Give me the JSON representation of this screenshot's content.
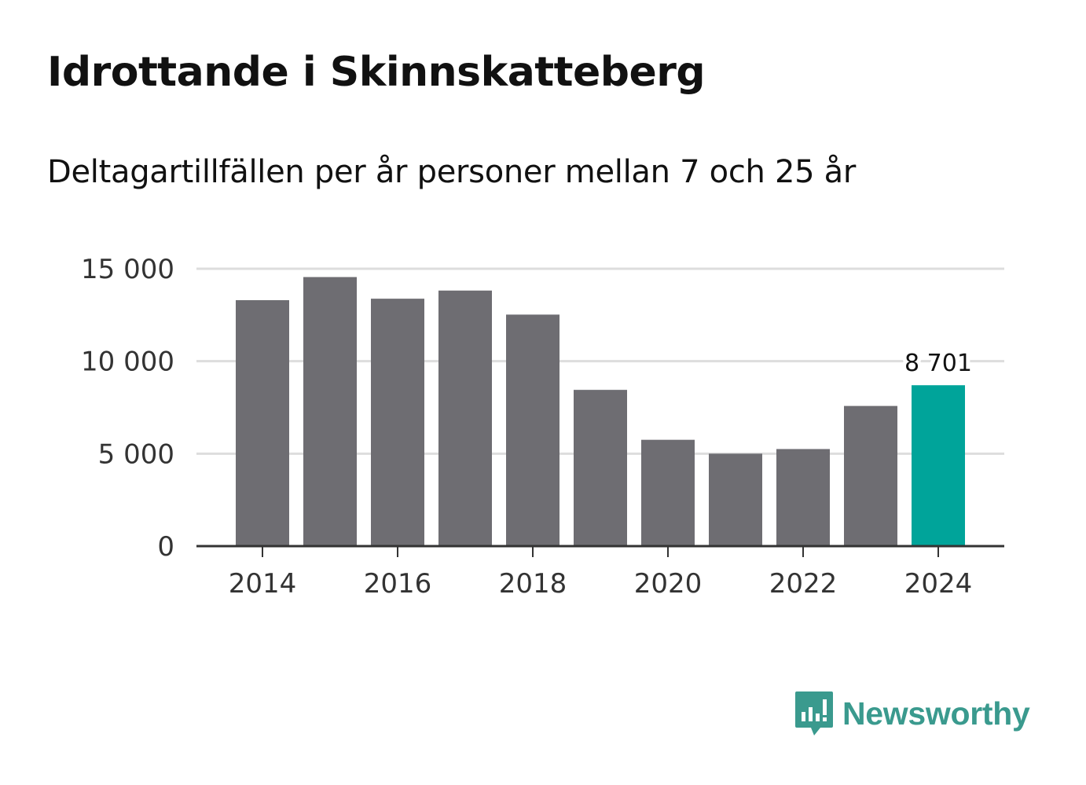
{
  "title": "Idrottande i Skinnskatteberg",
  "subtitle": "Deltagartillfällen per år personer mellan 7 och 25 år",
  "brand": {
    "name": "Newsworthy",
    "icon": "newsworthy-logo-icon",
    "color": "#3a9a8e"
  },
  "colors": {
    "bar": "#6e6d72",
    "highlight": "#00a49a",
    "grid": "#dddddd",
    "axis": "#333333"
  },
  "chart_data": {
    "type": "bar",
    "title": "Idrottande i Skinnskatteberg",
    "subtitle": "Deltagartillfällen per år personer mellan 7 och 25 år",
    "xlabel": "",
    "ylabel": "",
    "categories": [
      "2014",
      "2015",
      "2016",
      "2017",
      "2018",
      "2019",
      "2020",
      "2021",
      "2022",
      "2023",
      "2024"
    ],
    "values": [
      13300,
      14550,
      13380,
      13820,
      12520,
      8450,
      5750,
      5000,
      5250,
      7580,
      8701
    ],
    "highlight_index": 10,
    "data_labels": [
      {
        "index": 10,
        "text": "8 701"
      }
    ],
    "ylim": [
      0,
      15000
    ],
    "yticks": [
      {
        "value": 0,
        "label": "0"
      },
      {
        "value": 5000,
        "label": "5 000"
      },
      {
        "value": 10000,
        "label": "10 000"
      },
      {
        "value": 15000,
        "label": "15 000"
      }
    ],
    "xtick_labels": [
      "2014",
      "2016",
      "2018",
      "2020",
      "2022",
      "2024"
    ],
    "grid": true
  }
}
